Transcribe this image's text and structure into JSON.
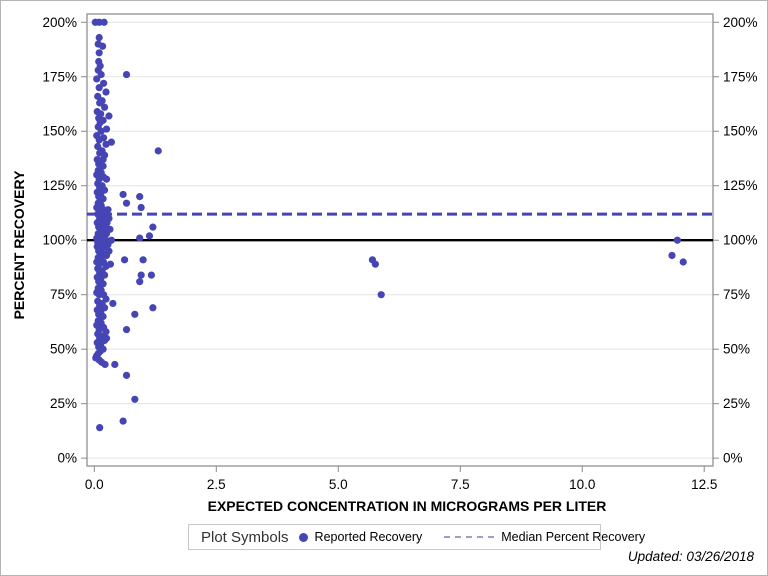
{
  "figure": {
    "updated_note": "Updated: 03/26/2018",
    "legend": {
      "title": "Plot Symbols",
      "items": [
        {
          "label": "Reported Recovery",
          "swatch": "marker-dot-icon"
        },
        {
          "label": "Median Percent Recovery",
          "swatch": "dashed-line-icon"
        }
      ]
    }
  },
  "chart_data": {
    "type": "scatter",
    "title": "",
    "xlabel": "EXPECTED CONCENTRATION IN MICROGRAMS PER LITER",
    "ylabel": "PERCENT RECOVERY",
    "xlim": [
      -0.15,
      12.68
    ],
    "ylim_pct": [
      -3.6,
      203.8
    ],
    "x_ticks": [
      0,
      2.5,
      5,
      7.5,
      10,
      12.5
    ],
    "x_tick_labels": [
      "0.0",
      "2.5",
      "5.0",
      "7.5",
      "10.0",
      "12.5"
    ],
    "y_ticks_pct": [
      0,
      25,
      50,
      75,
      100,
      125,
      150,
      175,
      200
    ],
    "y_tick_labels": [
      "0%",
      "25%",
      "50%",
      "75%",
      "100%",
      "125%",
      "150%",
      "175%",
      "200%"
    ],
    "grid": "horizontal",
    "y_axis_both_sides": true,
    "legend_position": "bottom",
    "colors": {
      "marker": "#4545b5",
      "median_line": "#4545b5",
      "reference_line": "#000000",
      "gridline": "#e3e3e3",
      "frame": "#8f8f96",
      "tick": "#8a8a8a",
      "legend_dash": "#9a9fce"
    },
    "reference_lines": [
      {
        "name": "100-percent-recovery-line",
        "y_pct": 100,
        "style": "solid",
        "color": "#000000",
        "width": 2.4
      },
      {
        "name": "median-percent-recovery-line",
        "y_pct": 112,
        "style": "dashed",
        "color": "#4545b5",
        "width": 3
      }
    ],
    "series": [
      {
        "name": "Reported Recovery",
        "marker": "filled-circle",
        "marker_color": "#4545b5",
        "marker_radius": 3.6,
        "points_x_ugL_y_pct": [
          [
            0.02,
            200
          ],
          [
            0.1,
            200
          ],
          [
            0.2,
            200
          ],
          [
            0.1,
            193
          ],
          [
            0.08,
            190
          ],
          [
            0.17,
            189
          ],
          [
            0.1,
            186
          ],
          [
            0.09,
            182
          ],
          [
            0.12,
            180
          ],
          [
            0.08,
            178
          ],
          [
            0.14,
            176
          ],
          [
            0.05,
            174
          ],
          [
            0.19,
            172
          ],
          [
            0.1,
            170
          ],
          [
            0.24,
            168
          ],
          [
            0.07,
            166
          ],
          [
            0.16,
            164
          ],
          [
            0.11,
            163
          ],
          [
            0.21,
            161
          ],
          [
            0.06,
            159
          ],
          [
            0.13,
            158
          ],
          [
            0.09,
            156
          ],
          [
            0.3,
            157
          ],
          [
            0.18,
            155
          ],
          [
            0.12,
            154
          ],
          [
            0.08,
            152
          ],
          [
            0.25,
            151
          ],
          [
            0.14,
            150
          ],
          [
            0.05,
            148
          ],
          [
            0.19,
            147
          ],
          [
            0.1,
            146
          ],
          [
            0.35,
            145
          ],
          [
            0.24,
            144
          ],
          [
            0.07,
            143
          ],
          [
            0.16,
            141
          ],
          [
            0.11,
            140
          ],
          [
            0.21,
            139
          ],
          [
            0.06,
            137
          ],
          [
            0.18,
            137
          ],
          [
            0.13,
            136
          ],
          [
            0.09,
            135
          ],
          [
            0.18,
            134
          ],
          [
            0.12,
            133
          ],
          [
            0.08,
            132
          ],
          [
            0.14,
            131
          ],
          [
            0.05,
            130
          ],
          [
            0.19,
            129
          ],
          [
            0.1,
            128
          ],
          [
            0.25,
            128
          ],
          [
            0.07,
            126
          ],
          [
            0.16,
            125
          ],
          [
            0.11,
            124
          ],
          [
            0.21,
            123
          ],
          [
            0.06,
            122
          ],
          [
            0.13,
            121
          ],
          [
            0.09,
            120
          ],
          [
            0.18,
            119
          ],
          [
            0.12,
            118
          ],
          [
            0.08,
            117
          ],
          [
            0.14,
            116
          ],
          [
            0.05,
            115
          ],
          [
            0.19,
            114
          ],
          [
            0.28,
            114
          ],
          [
            0.1,
            113
          ],
          [
            0.24,
            112
          ],
          [
            0.07,
            112
          ],
          [
            0.16,
            111
          ],
          [
            0.11,
            110
          ],
          [
            0.3,
            110
          ],
          [
            0.21,
            109
          ],
          [
            0.06,
            108
          ],
          [
            0.26,
            108
          ],
          [
            0.13,
            107
          ],
          [
            0.09,
            106
          ],
          [
            0.22,
            106
          ],
          [
            0.18,
            105
          ],
          [
            0.32,
            105
          ],
          [
            0.12,
            104
          ],
          [
            0.08,
            103
          ],
          [
            0.25,
            103
          ],
          [
            0.14,
            102
          ],
          [
            0.05,
            101
          ],
          [
            0.19,
            101
          ],
          [
            0.1,
            100
          ],
          [
            0.24,
            100
          ],
          [
            0.35,
            100
          ],
          [
            0.07,
            99
          ],
          [
            0.16,
            99
          ],
          [
            0.11,
            98
          ],
          [
            0.28,
            98
          ],
          [
            0.21,
            97
          ],
          [
            0.06,
            97
          ],
          [
            0.13,
            96
          ],
          [
            0.09,
            95
          ],
          [
            0.3,
            95
          ],
          [
            0.18,
            94
          ],
          [
            0.12,
            93
          ],
          [
            0.25,
            93
          ],
          [
            0.08,
            92
          ],
          [
            0.14,
            91
          ],
          [
            0.05,
            90
          ],
          [
            0.19,
            90
          ],
          [
            0.1,
            89
          ],
          [
            0.33,
            89
          ],
          [
            0.24,
            88
          ],
          [
            0.07,
            87
          ],
          [
            0.16,
            86
          ],
          [
            0.11,
            85
          ],
          [
            0.21,
            84
          ],
          [
            0.06,
            83
          ],
          [
            0.13,
            82
          ],
          [
            0.09,
            81
          ],
          [
            0.18,
            80
          ],
          [
            0.12,
            79
          ],
          [
            0.08,
            78
          ],
          [
            0.14,
            77
          ],
          [
            0.05,
            76
          ],
          [
            0.19,
            75
          ],
          [
            0.1,
            75
          ],
          [
            0.24,
            73
          ],
          [
            0.07,
            72
          ],
          [
            0.16,
            71
          ],
          [
            0.11,
            70
          ],
          [
            0.21,
            69
          ],
          [
            0.06,
            68
          ],
          [
            0.13,
            67
          ],
          [
            0.09,
            66
          ],
          [
            0.18,
            65
          ],
          [
            0.12,
            64
          ],
          [
            0.08,
            63
          ],
          [
            0.14,
            62
          ],
          [
            0.05,
            61
          ],
          [
            0.19,
            60
          ],
          [
            0.1,
            59
          ],
          [
            0.24,
            58
          ],
          [
            0.07,
            57
          ],
          [
            0.16,
            56
          ],
          [
            0.11,
            55
          ],
          [
            0.21,
            54
          ],
          [
            0.06,
            53
          ],
          [
            0.13,
            52
          ],
          [
            0.09,
            51
          ],
          [
            0.18,
            50
          ],
          [
            0.12,
            49
          ],
          [
            0.08,
            48
          ],
          [
            0.05,
            47
          ],
          [
            0.03,
            46
          ],
          [
            0.1,
            45
          ],
          [
            0.15,
            44
          ],
          [
            0.22,
            43
          ],
          [
            0.66,
            176
          ],
          [
            1.31,
            141
          ],
          [
            0.59,
            121
          ],
          [
            0.93,
            120
          ],
          [
            0.66,
            117
          ],
          [
            0.96,
            115
          ],
          [
            1.2,
            106
          ],
          [
            1.13,
            102
          ],
          [
            0.93,
            101
          ],
          [
            0.62,
            91
          ],
          [
            1.0,
            91
          ],
          [
            0.96,
            84
          ],
          [
            1.17,
            84
          ],
          [
            0.93,
            81
          ],
          [
            0.38,
            71
          ],
          [
            1.2,
            69
          ],
          [
            0.83,
            66
          ],
          [
            0.66,
            59
          ],
          [
            0.25,
            55
          ],
          [
            0.42,
            43
          ],
          [
            0.66,
            38
          ],
          [
            0.83,
            27
          ],
          [
            0.59,
            17
          ],
          [
            0.11,
            14
          ],
          [
            5.7,
            91
          ],
          [
            5.76,
            89
          ],
          [
            5.88,
            75
          ],
          [
            11.95,
            100
          ],
          [
            11.84,
            93
          ],
          [
            12.07,
            90
          ]
        ]
      }
    ]
  }
}
